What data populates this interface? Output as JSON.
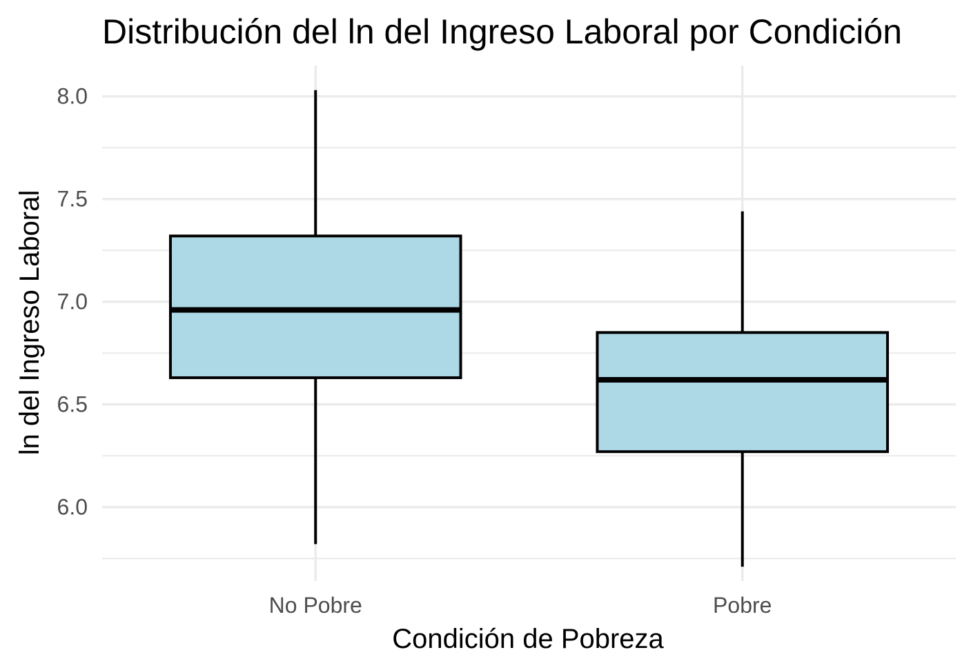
{
  "chart_data": {
    "type": "box",
    "title": "Distribución del ln del Ingreso Laboral por Condición",
    "xlabel": "Condición de Pobreza",
    "ylabel": "ln del Ingreso Laboral",
    "categories": [
      "No Pobre",
      "Pobre"
    ],
    "boxes": [
      {
        "category": "No Pobre",
        "min": 5.82,
        "q1": 6.63,
        "median": 6.96,
        "q3": 7.32,
        "max": 8.03
      },
      {
        "category": "Pobre",
        "min": 5.71,
        "q1": 6.27,
        "median": 6.62,
        "q3": 6.85,
        "max": 7.44
      }
    ],
    "yticks": [
      6.0,
      6.5,
      7.0,
      7.5,
      8.0
    ],
    "ytick_labels": [
      "6.0",
      "6.5",
      "7.0",
      "7.5",
      "8.0"
    ],
    "ylim": [
      5.64,
      8.15
    ],
    "grid": true,
    "legend": "none",
    "fill_color": "#add8e6",
    "line_color": "#000000",
    "grid_color": "#ebebeb"
  }
}
